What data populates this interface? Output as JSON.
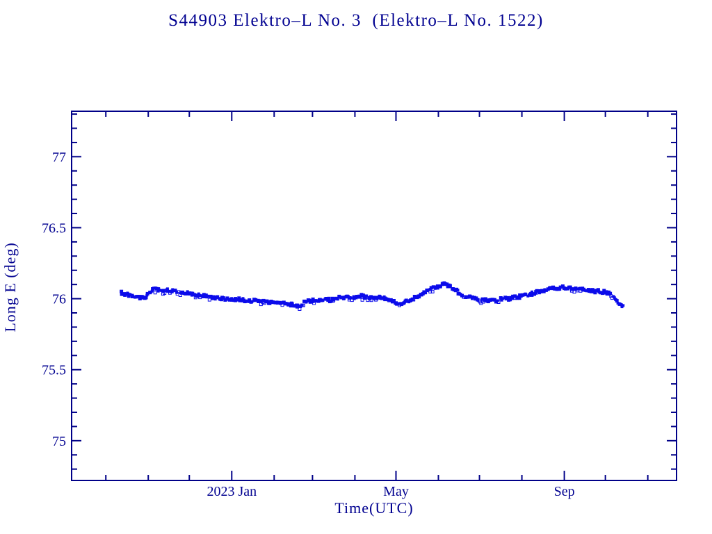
{
  "chart_data": {
    "type": "scatter",
    "title": "S44903 Elektro–L No. 3  (Elektro–L No. 1522)",
    "xlabel": "Time(UTC)",
    "ylabel": "Long E (deg)",
    "grid": false,
    "legend": "none",
    "marker": "square",
    "marker_color": "#0b0bea",
    "axis_color": "#000088",
    "ylim": [
      74.72,
      77.32
    ],
    "x_range": [
      "2022-09-06",
      "2023-11-22"
    ],
    "y_axis": {
      "major_ticks": [
        {
          "value": 75.0,
          "label": "75"
        },
        {
          "value": 75.5,
          "label": "75.5"
        },
        {
          "value": 76.0,
          "label": "76"
        },
        {
          "value": 76.5,
          "label": "76.5"
        },
        {
          "value": 77.0,
          "label": "77"
        }
      ],
      "minor_tick_step": 0.1,
      "minor_tick_range": [
        74.8,
        77.3
      ]
    },
    "x_axis": {
      "major_ticks": [
        {
          "date": "2023-01-01",
          "label": "2023 Jan"
        },
        {
          "date": "2023-05-01",
          "label": "May"
        },
        {
          "date": "2023-09-01",
          "label": "Sep"
        }
      ],
      "minor_tick_dates": [
        "2022-10-01",
        "2022-11-01",
        "2022-12-01",
        "2023-02-01",
        "2023-03-01",
        "2023-04-01",
        "2023-06-01",
        "2023-07-01",
        "2023-08-01",
        "2023-10-01",
        "2023-11-01"
      ]
    },
    "band_halfwidth_deg": 0.013,
    "series": [
      {
        "name": "longitude_east_deg",
        "x": [
          "2022-10-12",
          "2022-10-18",
          "2022-10-24",
          "2022-10-29",
          "2022-11-01",
          "2022-11-05",
          "2022-11-11",
          "2022-11-17",
          "2022-11-24",
          "2022-11-30",
          "2022-12-07",
          "2022-12-13",
          "2022-12-19",
          "2022-12-25",
          "2023-01-01",
          "2023-01-07",
          "2023-01-13",
          "2023-01-20",
          "2023-01-26",
          "2023-02-02",
          "2023-02-07",
          "2023-02-12",
          "2023-02-17",
          "2023-02-20",
          "2023-02-24",
          "2023-03-01",
          "2023-03-04",
          "2023-03-09",
          "2023-03-14",
          "2023-03-19",
          "2023-03-25",
          "2023-03-30",
          "2023-04-04",
          "2023-04-09",
          "2023-04-14",
          "2023-04-19",
          "2023-04-24",
          "2023-04-28",
          "2023-05-02",
          "2023-05-05",
          "2023-05-09",
          "2023-05-14",
          "2023-05-19",
          "2023-05-24",
          "2023-05-30",
          "2023-06-03",
          "2023-06-06",
          "2023-06-10",
          "2023-06-14",
          "2023-06-17",
          "2023-06-20",
          "2023-06-24",
          "2023-06-28",
          "2023-07-02",
          "2023-07-06",
          "2023-07-09",
          "2023-07-13",
          "2023-07-17",
          "2023-07-21",
          "2023-07-25",
          "2023-07-29",
          "2023-08-02",
          "2023-08-06",
          "2023-08-11",
          "2023-08-16",
          "2023-08-21",
          "2023-08-27",
          "2023-09-01",
          "2023-09-06",
          "2023-09-11",
          "2023-09-16",
          "2023-09-21",
          "2023-09-26",
          "2023-10-01",
          "2023-10-04",
          "2023-10-07",
          "2023-10-09",
          "2023-10-11",
          "2023-10-14"
        ],
        "y": [
          76.04,
          76.025,
          76.01,
          76.005,
          76.03,
          76.07,
          76.055,
          76.06,
          76.05,
          76.04,
          76.025,
          76.015,
          76.005,
          76.0,
          76.0,
          75.995,
          75.985,
          75.985,
          75.98,
          75.972,
          75.965,
          75.962,
          75.95,
          75.952,
          75.975,
          75.99,
          75.985,
          75.997,
          75.99,
          76.005,
          76.008,
          76.01,
          76.02,
          76.012,
          76.012,
          76.007,
          76.002,
          75.99,
          75.957,
          75.96,
          75.98,
          76.005,
          76.03,
          76.055,
          76.08,
          76.097,
          76.1,
          76.085,
          76.055,
          76.03,
          76.02,
          76.008,
          76.0,
          75.993,
          75.988,
          75.982,
          75.988,
          75.995,
          76.0,
          76.005,
          76.012,
          76.018,
          76.03,
          76.045,
          76.055,
          76.065,
          76.075,
          76.078,
          76.072,
          76.065,
          76.062,
          76.055,
          76.052,
          76.045,
          76.035,
          76.01,
          75.985,
          75.963,
          75.952
        ]
      }
    ]
  }
}
